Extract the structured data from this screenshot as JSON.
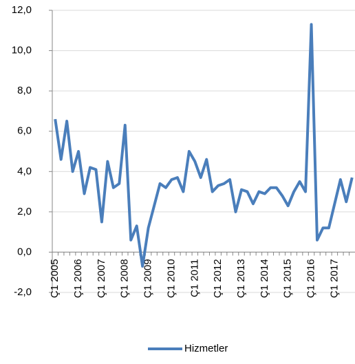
{
  "chart_data": {
    "type": "line",
    "categories": [
      "Ç1 2005",
      null,
      null,
      null,
      "Ç1 2006",
      null,
      null,
      null,
      "Ç1 2007",
      null,
      null,
      null,
      "Ç1 2008",
      null,
      null,
      null,
      "Ç1 2009",
      null,
      null,
      null,
      "Ç1 2010",
      null,
      null,
      null,
      "Ç1 2011",
      null,
      null,
      null,
      "Ç1 2012",
      null,
      null,
      null,
      "Ç1 2013",
      null,
      null,
      null,
      "Ç1 2014",
      null,
      null,
      null,
      "Ç1 2015",
      null,
      null,
      null,
      "Ç1 2016",
      null,
      null,
      null,
      "Ç1 2017",
      null,
      null,
      null
    ],
    "series": [
      {
        "name": "Hizmetler",
        "color": "#4a7ebb",
        "values": [
          6.6,
          4.6,
          6.5,
          4.0,
          5.0,
          2.9,
          4.2,
          4.1,
          1.5,
          4.5,
          3.2,
          3.4,
          6.3,
          0.6,
          1.3,
          -0.7,
          1.2,
          2.3,
          3.4,
          3.2,
          3.6,
          3.7,
          3.0,
          5.0,
          4.5,
          3.7,
          4.6,
          3.0,
          3.3,
          3.4,
          3.6,
          2.0,
          3.1,
          3.0,
          2.4,
          3.0,
          2.9,
          3.2,
          3.2,
          2.8,
          2.3,
          3.0,
          3.5,
          3.0,
          11.3,
          0.6,
          1.2,
          1.2,
          2.4,
          3.6,
          2.5,
          3.7
        ]
      }
    ],
    "ylim": [
      -2,
      12
    ],
    "yticks": [
      {
        "value": -2,
        "label": "-2,0"
      },
      {
        "value": 0,
        "label": "0,0"
      },
      {
        "value": 2,
        "label": "2,0"
      },
      {
        "value": 4,
        "label": "4,0"
      },
      {
        "value": 6,
        "label": "6,0"
      },
      {
        "value": 8,
        "label": "8,0"
      },
      {
        "value": 10,
        "label": "10,0"
      },
      {
        "value": 12,
        "label": "12,0"
      }
    ],
    "grid": true,
    "legend": "bottom"
  }
}
